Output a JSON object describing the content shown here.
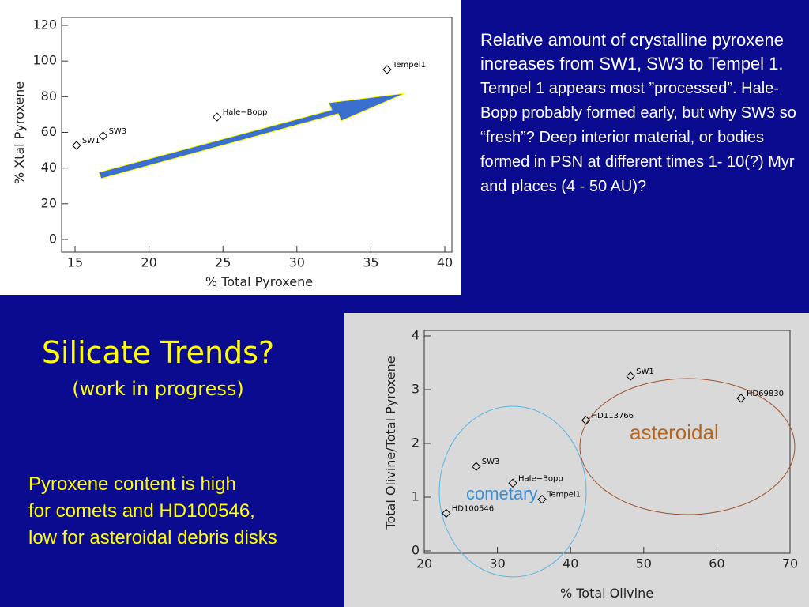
{
  "chart_data": [
    {
      "type": "scatter",
      "xlabel": "% Total Pyroxene",
      "ylabel": "% Xtal Pyroxene",
      "x": [
        15.1,
        16.9,
        24.6,
        36.1
      ],
      "values": [
        52.7,
        58,
        68.6,
        95.2
      ],
      "labels": [
        "SW1",
        "SW3",
        "Hale−Bopp",
        "Tempel1"
      ],
      "xlim": [
        15,
        40
      ],
      "xticks": [
        15,
        20,
        25,
        30,
        35,
        40
      ],
      "ylim": [
        0,
        120
      ],
      "yticks": [
        0,
        20,
        40,
        60,
        80,
        100,
        120
      ],
      "color": "#000000"
    },
    {
      "type": "scatter",
      "xlabel": "% Total Olivine",
      "ylabel": "Total Olivine/Total Pyroxene",
      "x": [
        23.0,
        27.1,
        32.1,
        36.1,
        42.1,
        48.2,
        63.3
      ],
      "values": [
        0.7,
        1.57,
        1.26,
        0.96,
        2.43,
        3.25,
        2.84
      ],
      "labels": [
        "HD100546",
        "SW3",
        "Hale−Bopp",
        "Tempel1",
        "HD113766",
        "SW1",
        "HD69830"
      ],
      "annotations": [
        "cometary",
        "asteroidal"
      ],
      "xlim": [
        20,
        70
      ],
      "xticks": [
        20,
        30,
        40,
        50,
        60,
        70
      ],
      "ylim": [
        0,
        4
      ],
      "yticks": [
        0,
        1,
        2,
        3,
        4
      ],
      "color": "#000000"
    }
  ],
  "slide": {
    "title": "Silicate Trends?",
    "subtitle": "(work in progress)",
    "summary_lead": "Relative amount of crystalline pyroxene increases from SW1, SW3 to Tempel 1.",
    "summary_rest": "Tempel 1 appears most ”processed”. Hale-Bopp probably formed early, but why SW3 so “fresh”? Deep interior material, or bodies formed in PSN at different times 1- 10(?) Myr and places (4 - 50 AU)?",
    "note_lines": [
      "Pyroxene content is high",
      "for comets and HD100546,",
      "low for asteroidal debris disks"
    ]
  }
}
